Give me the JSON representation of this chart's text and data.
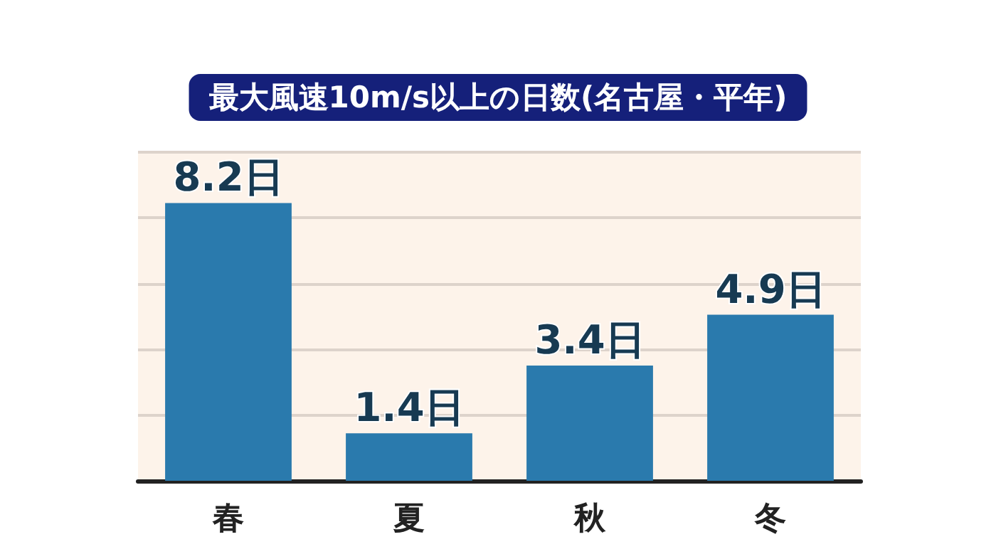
{
  "chart_data": {
    "type": "bar",
    "title": "最大風速10m/s以上の日数(名古屋・平年)",
    "categories": [
      "春",
      "夏",
      "秋",
      "冬"
    ],
    "values": [
      8.2,
      1.4,
      3.4,
      4.9
    ],
    "color": "#2a7aad",
    "value_labels": [
      "8.2日",
      "1.4日",
      "3.4日",
      "4.9日"
    ],
    "ylim": [
      0,
      9.7
    ],
    "yticks": [
      {
        "value": 0,
        "label": null
      },
      {
        "value": 1.94,
        "label": null
      },
      {
        "value": 3.88,
        "label": null
      },
      {
        "value": 5.82,
        "label": null
      },
      {
        "value": 7.76,
        "label": null
      },
      {
        "value": 9.7,
        "label": null
      }
    ],
    "grid": "y",
    "tick_labels": "x"
  }
}
